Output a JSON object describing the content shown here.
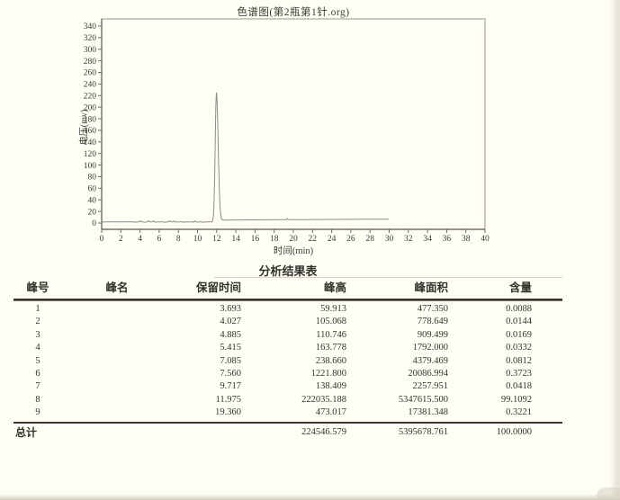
{
  "page": {
    "background": "#fffef4",
    "text_color": "#33312c"
  },
  "chart_data": {
    "type": "line",
    "title": "色谱图(第2瓶第1针.org)",
    "xlabel": "时间(min)",
    "ylabel": "电压(mv)",
    "xlim": [
      0,
      40
    ],
    "ylim": [
      0,
      340
    ],
    "x_ticks": [
      0,
      2,
      4,
      6,
      8,
      10,
      12,
      14,
      16,
      18,
      20,
      22,
      24,
      26,
      28,
      30,
      32,
      34,
      36,
      38,
      40
    ],
    "y_ticks": [
      0,
      20,
      40,
      60,
      80,
      100,
      120,
      140,
      160,
      180,
      200,
      220,
      240,
      260,
      280,
      300,
      320,
      340
    ],
    "grid": false,
    "frame": true,
    "legend": "none",
    "trace_color": "#8e8b84",
    "trace": {
      "start_min": 0,
      "end_min": 30,
      "baseline_start_mv": 1.8,
      "baseline_end_mv": 6.8
    },
    "peaks": [
      {
        "no": 1,
        "rt_min": 3.693,
        "height_mv": 0.0599
      },
      {
        "no": 2,
        "rt_min": 4.027,
        "height_mv": 0.1051
      },
      {
        "no": 3,
        "rt_min": 4.885,
        "height_mv": 0.1107
      },
      {
        "no": 4,
        "rt_min": 5.415,
        "height_mv": 0.1638
      },
      {
        "no": 5,
        "rt_min": 7.085,
        "height_mv": 0.2387
      },
      {
        "no": 6,
        "rt_min": 7.56,
        "height_mv": 1.2218
      },
      {
        "no": 7,
        "rt_min": 9.717,
        "height_mv": 0.1384
      },
      {
        "no": 8,
        "rt_min": 11.975,
        "height_mv": 222.035
      },
      {
        "no": 9,
        "rt_min": 19.36,
        "height_mv": 0.473
      }
    ]
  },
  "table": {
    "title": "分析结果表",
    "headers": [
      "峰号",
      "峰名",
      "保留时间",
      "峰高",
      "峰面积",
      "含量"
    ],
    "rows": [
      [
        "1",
        "",
        "3.693",
        "59.913",
        "477.350",
        "0.0088"
      ],
      [
        "2",
        "",
        "4.027",
        "105.068",
        "778.649",
        "0.0144"
      ],
      [
        "3",
        "",
        "4.885",
        "110.746",
        "909.499",
        "0.0169"
      ],
      [
        "4",
        "",
        "5.415",
        "163.778",
        "1792.000",
        "0.0332"
      ],
      [
        "5",
        "",
        "7.085",
        "238.660",
        "4379.469",
        "0.0812"
      ],
      [
        "6",
        "",
        "7.560",
        "1221.800",
        "20086.994",
        "0.3723"
      ],
      [
        "7",
        "",
        "9.717",
        "138.409",
        "2257.951",
        "0.0418"
      ],
      [
        "8",
        "",
        "11.975",
        "222035.188",
        "5347615.500",
        "99.1092"
      ],
      [
        "9",
        "",
        "19.360",
        "473.017",
        "17381.348",
        "0.3221"
      ]
    ],
    "total_label": "总计",
    "total": [
      "224546.579",
      "5395678.761",
      "100.0000"
    ]
  }
}
